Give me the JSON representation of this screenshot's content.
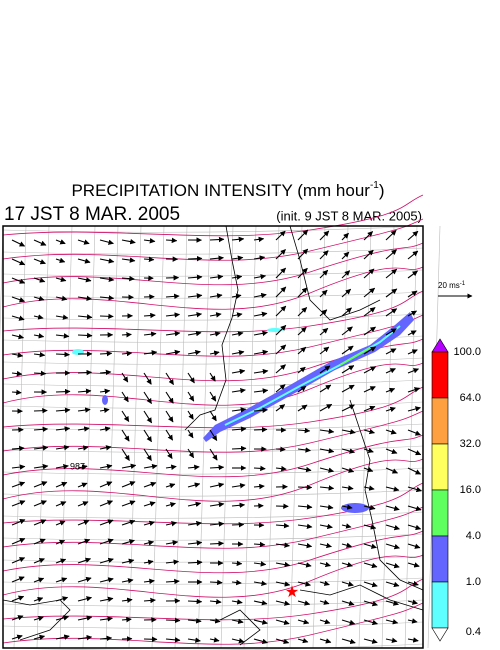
{
  "header": {
    "title": {
      "main": "PRECIPITATION INTENSITY (mm hour",
      "superscript": "-1",
      "close": ")"
    },
    "valid_time": "17 JST 8 MAR. 2005",
    "init_time": "(init. 9 JST 8 MAR. 2005)"
  },
  "wind_scale": {
    "label": "20 ms",
    "superscript": "-1"
  },
  "isobar_label": "987",
  "colorbar": {
    "top_color": "#b400ff",
    "bottom_color": "#ffffff",
    "labels": [
      "100.0",
      "64.0",
      "32.0",
      "16.0",
      "4.0",
      "1.0",
      "0.4"
    ],
    "colors": [
      "#ff0000",
      "#ffa040",
      "#ffff60",
      "#60ff60",
      "#6464ff",
      "#60ffff"
    ]
  }
}
